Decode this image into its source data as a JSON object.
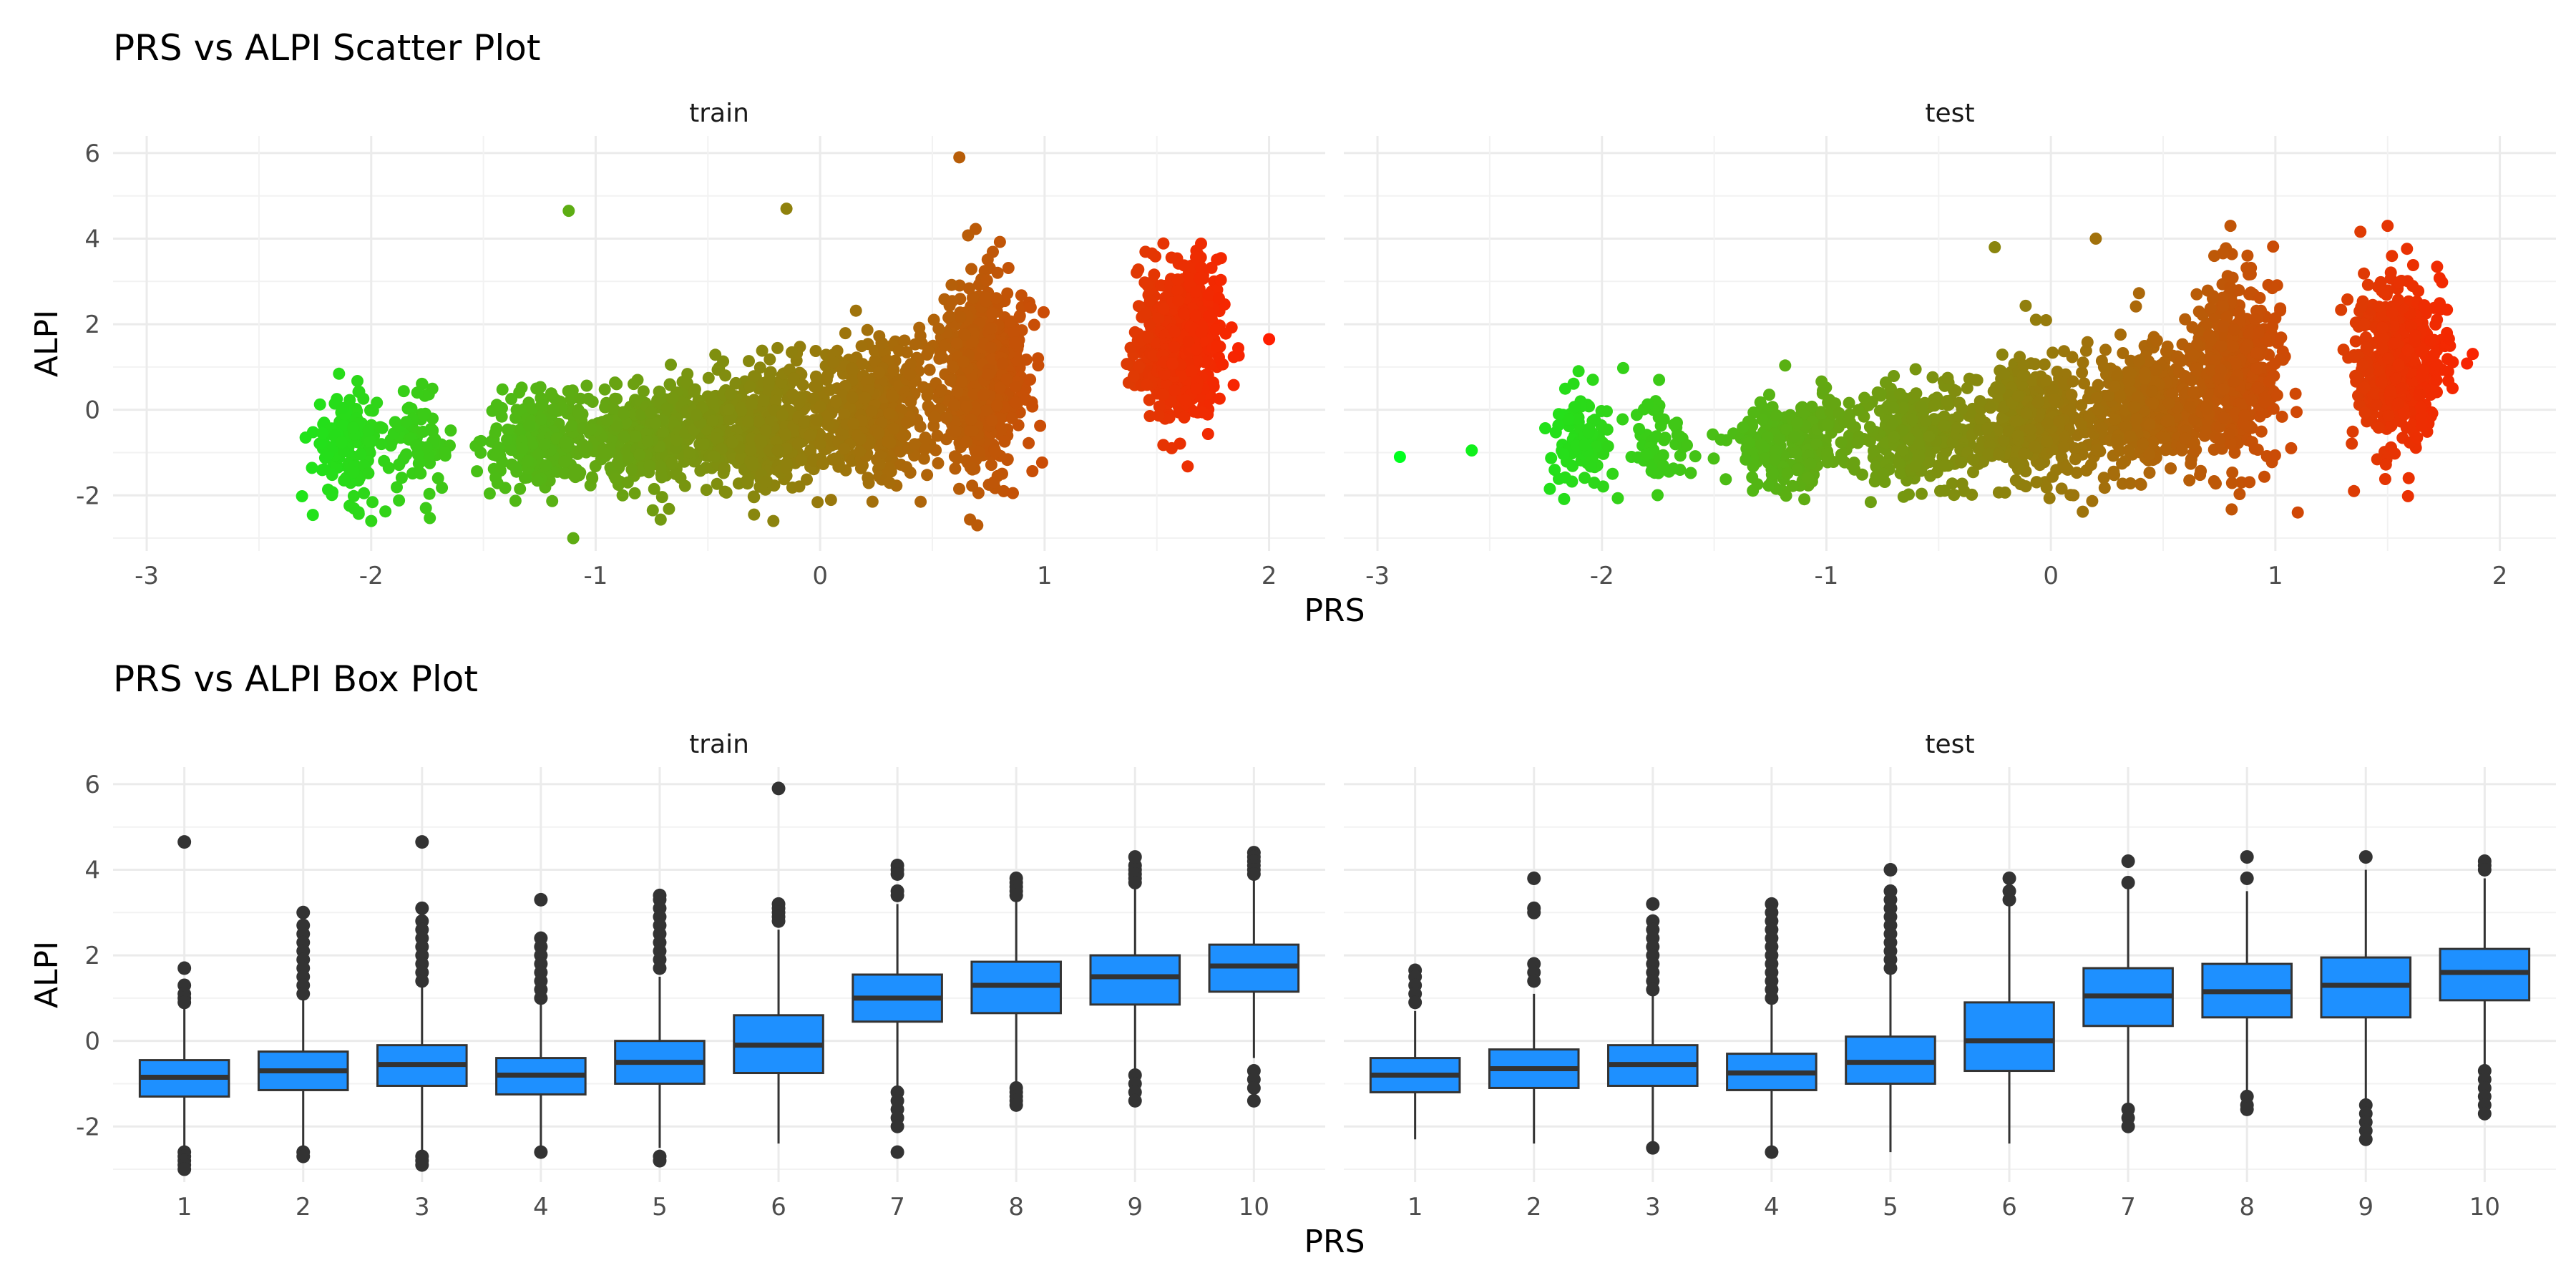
{
  "chart_data": [
    {
      "type": "scatter",
      "title": "PRS vs ALPI Scatter Plot",
      "xlabel": "PRS",
      "ylabel": "ALPI",
      "xlim": [
        -3.15,
        2.25
      ],
      "ylim": [
        -3.3,
        6.4
      ],
      "x_ticks": [
        "-3",
        "-2",
        "-1",
        "0",
        "1",
        "2"
      ],
      "y_ticks": [
        "-2",
        "0",
        "2",
        "4",
        "6"
      ],
      "grid": true,
      "color_scale": {
        "low": "#00ff1e",
        "high": "#ff1e00",
        "maps": "PRS"
      },
      "facets": [
        {
          "label": "train",
          "clusters": [
            {
              "x": -2.1,
              "y": -0.8,
              "sx": 0.08,
              "sy": 0.6,
              "n": 150
            },
            {
              "x": -1.8,
              "y": -0.8,
              "sx": 0.07,
              "sy": 0.55,
              "n": 80
            },
            {
              "x": -1.25,
              "y": -0.7,
              "sx": 0.12,
              "sy": 0.55,
              "n": 240
            },
            {
              "x": -0.75,
              "y": -0.55,
              "sx": 0.15,
              "sy": 0.6,
              "n": 380
            },
            {
              "x": -0.25,
              "y": -0.35,
              "sx": 0.15,
              "sy": 0.7,
              "n": 460
            },
            {
              "x": 0.25,
              "y": 0.0,
              "sx": 0.14,
              "sy": 0.8,
              "n": 440
            },
            {
              "x": 0.72,
              "y": 0.8,
              "sx": 0.09,
              "sy": 1.05,
              "n": 650
            },
            {
              "x": 1.6,
              "y": 1.6,
              "sx": 0.09,
              "sy": 0.85,
              "n": 650
            }
          ],
          "outliers": [
            {
              "x": 0.62,
              "y": 5.9
            },
            {
              "x": -1.12,
              "y": 4.65
            },
            {
              "x": -0.15,
              "y": 4.7
            },
            {
              "x": 2.0,
              "y": 1.65
            },
            {
              "x": -2.0,
              "y": -2.6
            },
            {
              "x": -1.1,
              "y": -3.0
            },
            {
              "x": 0.7,
              "y": -2.7
            }
          ]
        },
        {
          "label": "test",
          "clusters": [
            {
              "x": -2.1,
              "y": -0.7,
              "sx": 0.07,
              "sy": 0.55,
              "n": 100
            },
            {
              "x": -1.75,
              "y": -0.75,
              "sx": 0.07,
              "sy": 0.55,
              "n": 60
            },
            {
              "x": -1.15,
              "y": -0.7,
              "sx": 0.13,
              "sy": 0.55,
              "n": 220
            },
            {
              "x": -0.6,
              "y": -0.55,
              "sx": 0.15,
              "sy": 0.6,
              "n": 320
            },
            {
              "x": -0.05,
              "y": -0.25,
              "sx": 0.14,
              "sy": 0.75,
              "n": 380
            },
            {
              "x": 0.45,
              "y": 0.1,
              "sx": 0.13,
              "sy": 0.8,
              "n": 360
            },
            {
              "x": 0.82,
              "y": 0.9,
              "sx": 0.09,
              "sy": 1.0,
              "n": 480
            },
            {
              "x": 1.55,
              "y": 1.2,
              "sx": 0.09,
              "sy": 0.95,
              "n": 520
            }
          ],
          "outliers": [
            {
              "x": -2.9,
              "y": -1.1
            },
            {
              "x": -2.58,
              "y": -0.95
            },
            {
              "x": -0.25,
              "y": 3.8
            },
            {
              "x": 0.2,
              "y": 4.0
            },
            {
              "x": 0.8,
              "y": 4.3
            },
            {
              "x": 1.5,
              "y": 4.3
            },
            {
              "x": 1.1,
              "y": -2.4
            },
            {
              "x": 1.35,
              "y": -1.9
            }
          ]
        }
      ]
    },
    {
      "type": "box",
      "title": "PRS vs ALPI Box Plot",
      "xlabel": "PRS",
      "ylabel": "ALPI",
      "categories": [
        "1",
        "2",
        "3",
        "4",
        "5",
        "6",
        "7",
        "8",
        "9",
        "10"
      ],
      "ylim": [
        -3.3,
        6.4
      ],
      "y_ticks": [
        "-2",
        "0",
        "2",
        "4",
        "6"
      ],
      "grid": true,
      "box_color": "#1e90ff",
      "facets": [
        {
          "label": "train",
          "boxes": [
            {
              "q1": -1.3,
              "median": -0.85,
              "q3": -0.45,
              "lower": -2.5,
              "upper": 0.8,
              "outliers": [
                4.65,
                1.7,
                1.3,
                1.1,
                1.0,
                0.9,
                -2.6,
                -2.7,
                -2.8,
                -2.9,
                -3.0
              ]
            },
            {
              "q1": -1.15,
              "median": -0.7,
              "q3": -0.25,
              "lower": -2.5,
              "upper": 1.0,
              "outliers": [
                3.0,
                2.7,
                2.5,
                2.3,
                2.1,
                1.9,
                1.7,
                1.5,
                1.3,
                1.1,
                -2.6,
                -2.7
              ]
            },
            {
              "q1": -1.05,
              "median": -0.55,
              "q3": -0.1,
              "lower": -2.6,
              "upper": 1.3,
              "outliers": [
                4.65,
                3.1,
                2.8,
                2.6,
                2.4,
                2.2,
                2.0,
                1.8,
                1.6,
                1.4,
                -2.7,
                -2.8,
                -2.9
              ]
            },
            {
              "q1": -1.25,
              "median": -0.8,
              "q3": -0.4,
              "lower": -2.5,
              "upper": 0.9,
              "outliers": [
                3.3,
                2.4,
                2.2,
                2.0,
                1.8,
                1.6,
                1.4,
                1.2,
                1.0,
                -2.6
              ]
            },
            {
              "q1": -1.0,
              "median": -0.5,
              "q3": 0.0,
              "lower": -2.5,
              "upper": 1.5,
              "outliers": [
                3.4,
                3.3,
                3.1,
                2.9,
                2.7,
                2.5,
                2.3,
                2.1,
                1.9,
                1.7,
                -2.7,
                -2.8
              ]
            },
            {
              "q1": -0.75,
              "median": -0.1,
              "q3": 0.6,
              "lower": -2.4,
              "upper": 2.6,
              "outliers": [
                5.9,
                3.2,
                3.1,
                3.0,
                2.9,
                2.8
              ]
            },
            {
              "q1": 0.45,
              "median": 1.0,
              "q3": 1.55,
              "lower": -1.1,
              "upper": 3.2,
              "outliers": [
                4.1,
                4.0,
                3.9,
                3.5,
                3.4,
                -1.2,
                -1.4,
                -1.6,
                -1.8,
                -2.0,
                -2.6
              ]
            },
            {
              "q1": 0.65,
              "median": 1.3,
              "q3": 1.85,
              "lower": -1.0,
              "upper": 3.3,
              "outliers": [
                3.8,
                3.7,
                3.6,
                3.5,
                3.4,
                -1.1,
                -1.2,
                -1.3,
                -1.4,
                -1.5
              ]
            },
            {
              "q1": 0.85,
              "median": 1.5,
              "q3": 2.0,
              "lower": -0.7,
              "upper": 3.6,
              "outliers": [
                4.3,
                4.1,
                4.0,
                3.9,
                3.8,
                3.7,
                -0.8,
                -1.0,
                -1.2,
                -1.4
              ]
            },
            {
              "q1": 1.15,
              "median": 1.75,
              "q3": 2.25,
              "lower": -0.4,
              "upper": 3.8,
              "outliers": [
                4.4,
                4.3,
                4.2,
                4.1,
                4.0,
                3.9,
                -0.7,
                -0.9,
                -1.1,
                -1.4
              ]
            }
          ]
        },
        {
          "label": "test",
          "boxes": [
            {
              "q1": -1.2,
              "median": -0.8,
              "q3": -0.4,
              "lower": -2.3,
              "upper": 0.7,
              "outliers": [
                1.65,
                1.5,
                1.3,
                1.1,
                0.9
              ]
            },
            {
              "q1": -1.1,
              "median": -0.65,
              "q3": -0.2,
              "lower": -2.4,
              "upper": 1.1,
              "outliers": [
                3.8,
                3.1,
                3.0,
                1.8,
                1.6,
                1.4
              ]
            },
            {
              "q1": -1.05,
              "median": -0.55,
              "q3": -0.1,
              "lower": -2.4,
              "upper": 1.1,
              "outliers": [
                3.2,
                2.8,
                2.6,
                2.4,
                2.2,
                2.0,
                1.8,
                1.6,
                1.4,
                1.2,
                -2.5
              ]
            },
            {
              "q1": -1.15,
              "median": -0.75,
              "q3": -0.3,
              "lower": -2.5,
              "upper": 0.9,
              "outliers": [
                3.2,
                3.0,
                2.8,
                2.6,
                2.4,
                2.2,
                2.0,
                1.8,
                1.6,
                1.4,
                1.2,
                1.0,
                -2.6
              ]
            },
            {
              "q1": -1.0,
              "median": -0.5,
              "q3": 0.1,
              "lower": -2.6,
              "upper": 1.6,
              "outliers": [
                4.0,
                3.5,
                3.3,
                3.1,
                2.9,
                2.7,
                2.5,
                2.3,
                2.1,
                1.9,
                1.7
              ]
            },
            {
              "q1": -0.7,
              "median": 0.0,
              "q3": 0.9,
              "lower": -2.4,
              "upper": 3.2,
              "outliers": [
                3.8,
                3.5,
                3.3
              ]
            },
            {
              "q1": 0.35,
              "median": 1.05,
              "q3": 1.7,
              "lower": -1.5,
              "upper": 3.6,
              "outliers": [
                4.2,
                3.7,
                -1.6,
                -1.8,
                -2.0
              ]
            },
            {
              "q1": 0.55,
              "median": 1.15,
              "q3": 1.8,
              "lower": -1.2,
              "upper": 3.5,
              "outliers": [
                4.3,
                3.8,
                -1.3,
                -1.5,
                -1.6
              ]
            },
            {
              "q1": 0.55,
              "median": 1.3,
              "q3": 1.95,
              "lower": -1.4,
              "upper": 4.0,
              "outliers": [
                4.3,
                -1.5,
                -1.7,
                -1.9,
                -2.1,
                -2.3
              ]
            },
            {
              "q1": 0.95,
              "median": 1.6,
              "q3": 2.15,
              "lower": -0.6,
              "upper": 3.8,
              "outliers": [
                4.2,
                4.1,
                4.0,
                -0.7,
                -0.9,
                -1.1,
                -1.3,
                -1.5,
                -1.7
              ]
            }
          ]
        }
      ]
    }
  ]
}
